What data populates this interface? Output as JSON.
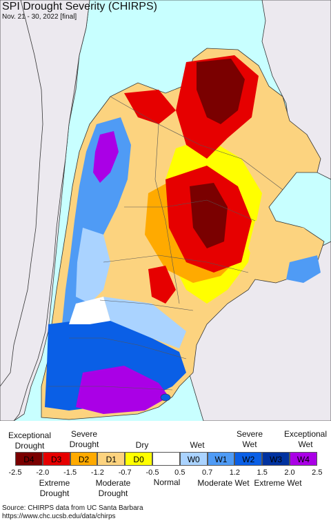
{
  "header": {
    "title": "SPI Drought Severity (CHIRPS)",
    "subtitle": "Nov. 21 - 30, 2022 [final]"
  },
  "legend": {
    "top_labels": [
      "Exceptional Drought",
      "Severe Drought",
      "Dry",
      "Wet",
      "Severe Wet",
      "Exceptional Wet"
    ],
    "bottom_labels": [
      "Extreme Drought",
      "Moderate Drought",
      "Normal",
      "Moderate Wet",
      "Extreme Wet"
    ],
    "categories": [
      {
        "label": "D4",
        "color": "#7a0000"
      },
      {
        "label": "D3",
        "color": "#e60000"
      },
      {
        "label": "D2",
        "color": "#ffaa00"
      },
      {
        "label": "D1",
        "color": "#fcd37f"
      },
      {
        "label": "D0",
        "color": "#ffff00"
      },
      {
        "label": "",
        "color": "#ffffff"
      },
      {
        "label": "W0",
        "color": "#aad3ff"
      },
      {
        "label": "W1",
        "color": "#4f9bf5"
      },
      {
        "label": "W2",
        "color": "#0a5fe6"
      },
      {
        "label": "W3",
        "color": "#0032a0"
      },
      {
        "label": "W4",
        "color": "#aa00e6"
      }
    ],
    "ticks": [
      "-2.5",
      "-2.0",
      "-1.5",
      "-1.2",
      "-0.7",
      "-0.5",
      "0.5",
      "0.7",
      "1.2",
      "1.5",
      "2.0",
      "2.5"
    ]
  },
  "footer": {
    "source": "Source: CHIRPS data from UC Santa Barbara",
    "url": "https://www.chc.ucsb.edu/data/chirps"
  },
  "map_colors": {
    "ocean": "#c8ffff",
    "outside_land": "#ece9ef",
    "border": "#333333"
  }
}
